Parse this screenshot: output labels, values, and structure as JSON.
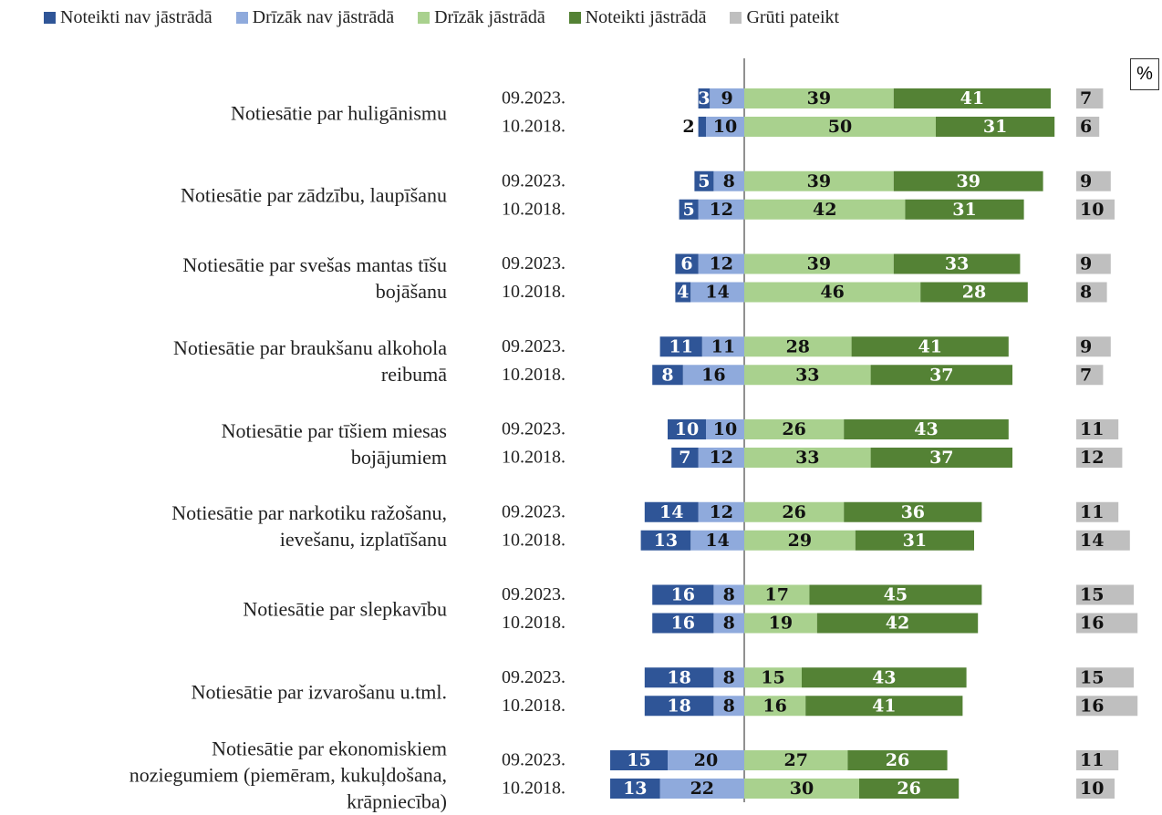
{
  "chart_data": {
    "type": "diverging_bar",
    "unit": "%",
    "categories": [
      "Notiesātie par huligānismu",
      "Notiesātie par zādzību, laupīšanu",
      "Notiesātie par svešas mantas tīšu\nbojāšanu",
      "Notiesātie par braukšanu alkohola\nreibumā",
      "Notiesātie par tīšiem miesas\nbojājumiem",
      "Notiesātie par narkotiku ražošanu,\nievešanu, izplatīšanu",
      "Notiesātie par slepkavību",
      "Notiesātie par izvarošanu u.tml.",
      "Notiesātie par ekonomiskiem\nnoziegumiem (piemēram, kukuļdošana,\nkrāpniecība)"
    ],
    "periods": [
      "09.2023.",
      "10.2018."
    ],
    "series": [
      {
        "name": "Noteikti nav jāstrādā",
        "color": "#2f5597",
        "side": "negative",
        "values": [
          [
            3,
            2
          ],
          [
            5,
            5
          ],
          [
            6,
            4
          ],
          [
            11,
            8
          ],
          [
            10,
            7
          ],
          [
            14,
            13
          ],
          [
            16,
            16
          ],
          [
            18,
            18
          ],
          [
            15,
            13
          ]
        ]
      },
      {
        "name": "Drīzāk nav jāstrādā",
        "color": "#8faadc",
        "side": "negative",
        "values": [
          [
            9,
            10
          ],
          [
            8,
            12
          ],
          [
            12,
            14
          ],
          [
            11,
            16
          ],
          [
            10,
            12
          ],
          [
            12,
            14
          ],
          [
            8,
            8
          ],
          [
            8,
            8
          ],
          [
            20,
            22
          ]
        ]
      },
      {
        "name": "Drīzāk jāstrādā",
        "color": "#a9d18e",
        "side": "positive",
        "values": [
          [
            39,
            50
          ],
          [
            39,
            42
          ],
          [
            39,
            46
          ],
          [
            28,
            33
          ],
          [
            26,
            33
          ],
          [
            26,
            29
          ],
          [
            17,
            19
          ],
          [
            15,
            16
          ],
          [
            27,
            30
          ]
        ]
      },
      {
        "name": "Noteikti jāstrādā",
        "color": "#548235",
        "side": "positive",
        "values": [
          [
            41,
            31
          ],
          [
            39,
            31
          ],
          [
            33,
            28
          ],
          [
            41,
            37
          ],
          [
            43,
            37
          ],
          [
            36,
            31
          ],
          [
            45,
            42
          ],
          [
            43,
            41
          ],
          [
            26,
            26
          ]
        ]
      },
      {
        "name": "Grūti pateikt",
        "color": "#bfbfbf",
        "side": "separate",
        "values": [
          [
            7,
            6
          ],
          [
            9,
            10
          ],
          [
            9,
            8
          ],
          [
            9,
            7
          ],
          [
            11,
            12
          ],
          [
            11,
            14
          ],
          [
            15,
            16
          ],
          [
            15,
            16
          ],
          [
            11,
            10
          ]
        ]
      }
    ]
  }
}
